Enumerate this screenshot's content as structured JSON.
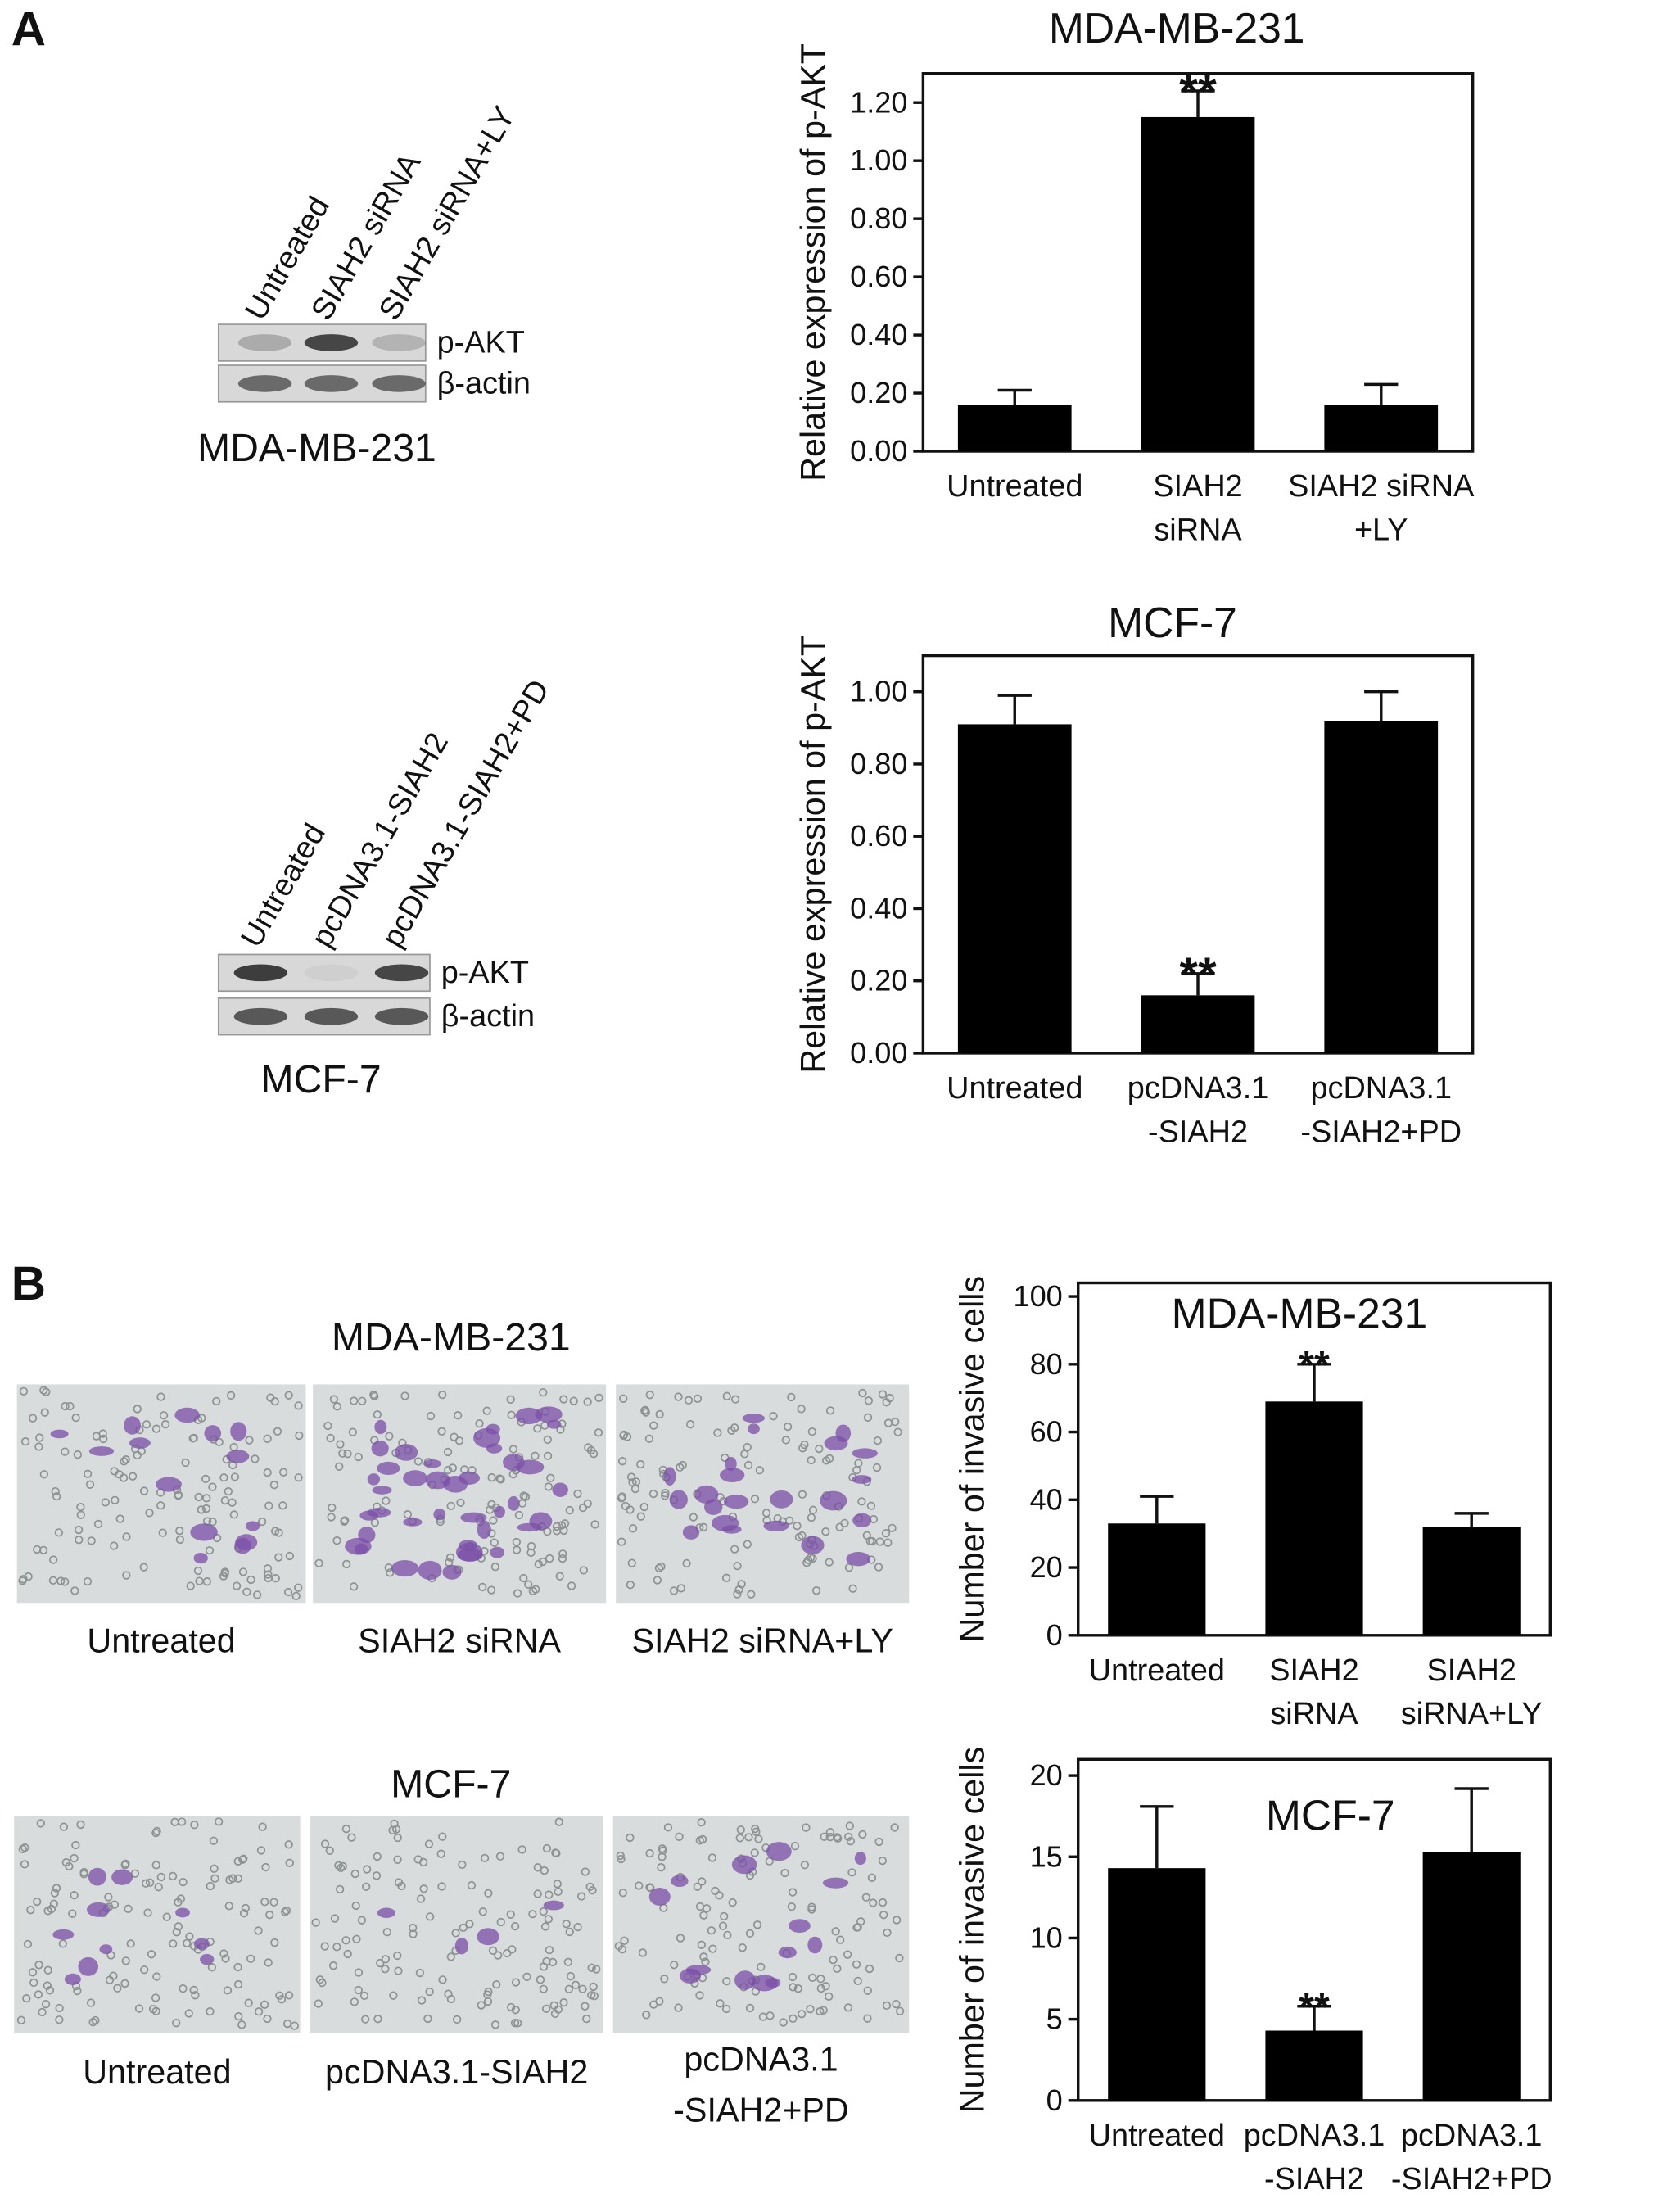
{
  "figure": {
    "panel_labels": [
      "A",
      "B"
    ],
    "blots": [
      {
        "lanes": [
          "Untreated",
          "SIAH2 siRNA",
          "SIAH2 siRNA+LY"
        ],
        "bands": [
          "p-AKT",
          "β-actin"
        ],
        "cell_line": "MDA-MB-231"
      },
      {
        "lanes": [
          "Untreated",
          "pcDNA3.1-SIAH2",
          "pcDNA3.1-SIAH2+PD"
        ],
        "bands": [
          "p-AKT",
          "β-actin"
        ],
        "cell_line": "MCF-7"
      }
    ],
    "micrographs": [
      {
        "title": "MDA-MB-231",
        "captions": [
          [
            "Untreated"
          ],
          [
            "SIAH2 siRNA"
          ],
          [
            "SIAH2 siRNA+LY"
          ]
        ]
      },
      {
        "title": "MCF-7",
        "captions": [
          [
            "Untreated"
          ],
          [
            "pcDNA3.1-SIAH2"
          ],
          [
            "pcDNA3.1",
            "-SIAH2+PD"
          ]
        ]
      }
    ]
  },
  "chart_data": [
    {
      "type": "bar",
      "title": "MDA-MB-231",
      "y_label": "Relative expression of p-AKT",
      "categories": [
        [
          "Untreated"
        ],
        [
          "SIAH2",
          "siRNA"
        ],
        [
          "SIAH2 siRNA",
          "+LY"
        ]
      ],
      "values": [
        0.16,
        1.15,
        0.16
      ],
      "errors": [
        0.05,
        0.09,
        0.07
      ],
      "significance": [
        null,
        "**",
        null
      ],
      "color": "#000000",
      "ylim": [
        0,
        1.3
      ],
      "yticks": [
        {
          "value": 0,
          "label": "0.00"
        },
        {
          "value": 0.2,
          "label": "0.20"
        },
        {
          "value": 0.4,
          "label": "0.40"
        },
        {
          "value": 0.6,
          "label": "0.60"
        },
        {
          "value": 0.8,
          "label": "0.80"
        },
        {
          "value": 1.0,
          "label": "1.00"
        },
        {
          "value": 1.2,
          "label": "1.20"
        }
      ]
    },
    {
      "type": "bar",
      "title": "MCF-7",
      "y_label": "Relative expression of p-AKT",
      "categories": [
        [
          "Untreated"
        ],
        [
          "pcDNA3.1",
          "-SIAH2"
        ],
        [
          "pcDNA3.1",
          "-SIAH2+PD"
        ]
      ],
      "values": [
        0.91,
        0.16,
        0.92
      ],
      "errors": [
        0.08,
        0.06,
        0.08
      ],
      "significance": [
        null,
        "**",
        null
      ],
      "color": "#000000",
      "ylim": [
        0,
        1.1
      ],
      "yticks": [
        {
          "value": 0,
          "label": "0.00"
        },
        {
          "value": 0.2,
          "label": "0.20"
        },
        {
          "value": 0.4,
          "label": "0.40"
        },
        {
          "value": 0.6,
          "label": "0.60"
        },
        {
          "value": 0.8,
          "label": "0.80"
        },
        {
          "value": 1.0,
          "label": "1.00"
        }
      ]
    },
    {
      "type": "bar",
      "title": "MDA-MB-231",
      "y_label": "Number of invasive cells",
      "categories": [
        [
          "Untreated"
        ],
        [
          "SIAH2",
          "siRNA"
        ],
        [
          "SIAH2",
          "siRNA+LY"
        ]
      ],
      "values": [
        33,
        69,
        32
      ],
      "errors": [
        8,
        11,
        4
      ],
      "significance": [
        null,
        "**",
        null
      ],
      "color": "#000000",
      "ylim": [
        0,
        104
      ],
      "yticks": [
        0,
        20,
        40,
        60,
        80,
        100
      ]
    },
    {
      "type": "bar",
      "title": "MCF-7",
      "y_label": "Number of invasive cells",
      "categories": [
        [
          "Untreated"
        ],
        [
          "pcDNA3.1",
          "-SIAH2"
        ],
        [
          "pcDNA3.1",
          "-SIAH2+PD"
        ]
      ],
      "values": [
        14.3,
        4.3,
        15.3
      ],
      "errors": [
        3.8,
        1.5,
        3.9
      ],
      "significance": [
        null,
        "**",
        null
      ],
      "color": "#000000",
      "ylim": [
        0,
        21
      ],
      "yticks": [
        0,
        5,
        10,
        15,
        20
      ]
    }
  ]
}
